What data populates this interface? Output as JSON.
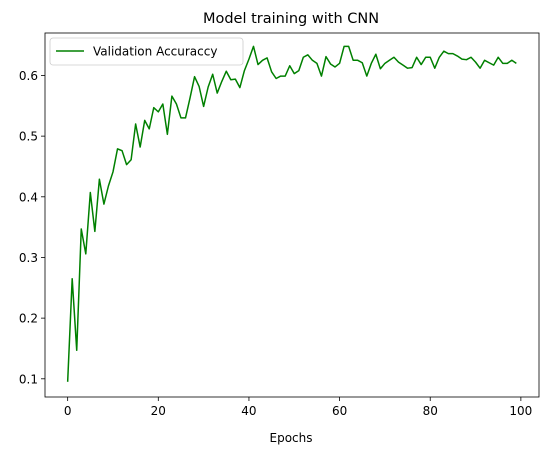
{
  "chart_data": {
    "type": "line",
    "title": "Model training with CNN",
    "xlabel": "Epochs",
    "ylabel": "",
    "xlim": [
      -5,
      104
    ],
    "ylim": [
      0.07,
      0.67
    ],
    "xticks": [
      0,
      20,
      40,
      60,
      80,
      100
    ],
    "yticks": [
      0.1,
      0.2,
      0.3,
      0.4,
      0.5,
      0.6
    ],
    "xtick_labels": [
      "0",
      "20",
      "40",
      "60",
      "80",
      "100"
    ],
    "ytick_labels": [
      "0.1",
      "0.2",
      "0.3",
      "0.4",
      "0.5",
      "0.6"
    ],
    "grid": false,
    "legend_position": "top-left",
    "series": [
      {
        "name": "Validation Accuraccy",
        "color": "#008000",
        "x": [
          0,
          1,
          2,
          3,
          4,
          5,
          6,
          7,
          8,
          9,
          10,
          11,
          12,
          13,
          14,
          15,
          16,
          17,
          18,
          19,
          20,
          21,
          22,
          23,
          24,
          25,
          26,
          27,
          28,
          29,
          30,
          31,
          32,
          33,
          34,
          35,
          36,
          37,
          38,
          39,
          40,
          41,
          42,
          43,
          44,
          45,
          46,
          47,
          48,
          49,
          50,
          51,
          52,
          53,
          54,
          55,
          56,
          57,
          58,
          59,
          60,
          61,
          62,
          63,
          64,
          65,
          66,
          67,
          68,
          69,
          70,
          71,
          72,
          73,
          74,
          75,
          76,
          77,
          78,
          79,
          80,
          81,
          82,
          83,
          84,
          85,
          86,
          87,
          88,
          89,
          90,
          91,
          92,
          93,
          94,
          95,
          96,
          97,
          98,
          99
        ],
        "y": [
          0.095,
          0.265,
          0.147,
          0.347,
          0.306,
          0.407,
          0.343,
          0.429,
          0.388,
          0.418,
          0.441,
          0.479,
          0.476,
          0.453,
          0.461,
          0.52,
          0.482,
          0.526,
          0.512,
          0.547,
          0.54,
          0.553,
          0.503,
          0.566,
          0.553,
          0.53,
          0.53,
          0.563,
          0.598,
          0.582,
          0.549,
          0.581,
          0.602,
          0.571,
          0.59,
          0.607,
          0.593,
          0.594,
          0.58,
          0.608,
          0.627,
          0.648,
          0.618,
          0.625,
          0.629,
          0.606,
          0.595,
          0.599,
          0.599,
          0.616,
          0.603,
          0.608,
          0.63,
          0.634,
          0.625,
          0.62,
          0.599,
          0.631,
          0.619,
          0.614,
          0.62,
          0.648,
          0.648,
          0.625,
          0.625,
          0.621,
          0.599,
          0.62,
          0.635,
          0.611,
          0.62,
          0.625,
          0.63,
          0.622,
          0.617,
          0.612,
          0.613,
          0.63,
          0.618,
          0.63,
          0.63,
          0.612,
          0.63,
          0.64,
          0.636,
          0.636,
          0.632,
          0.627,
          0.626,
          0.63,
          0.622,
          0.612,
          0.625,
          0.621,
          0.617,
          0.63,
          0.62,
          0.62,
          0.625,
          0.62
        ]
      }
    ]
  }
}
